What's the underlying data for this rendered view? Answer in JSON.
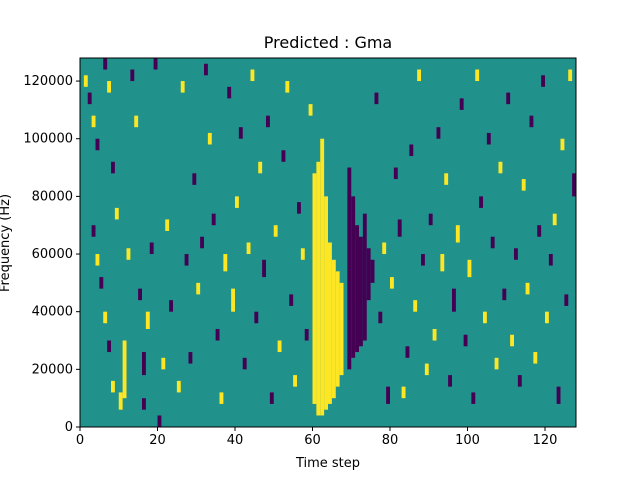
{
  "chart_data": {
    "type": "heatmap",
    "title": "Predicted : Gma",
    "xlabel": "Time step",
    "ylabel": "Frequency (Hz)",
    "xlim": [
      0,
      128
    ],
    "ylim": [
      0,
      128000
    ],
    "x_ticks": [
      0,
      20,
      40,
      60,
      80,
      100,
      120
    ],
    "y_ticks": [
      0,
      20000,
      40000,
      60000,
      80000,
      100000,
      120000
    ],
    "grid": false,
    "legend": "none",
    "colormap": "viridis (3 levels)",
    "value_colors": {
      "low": "#440154",
      "mid": "#21918c",
      "high": "#fde725"
    },
    "background_value": "mid",
    "cells": [
      {
        "x": 60,
        "y0": 8000,
        "y1": 88000,
        "v": "high"
      },
      {
        "x": 61,
        "y0": 4000,
        "y1": 92000,
        "v": "high"
      },
      {
        "x": 62,
        "y0": 4000,
        "y1": 100000,
        "v": "high"
      },
      {
        "x": 63,
        "y0": 6000,
        "y1": 80000,
        "v": "high"
      },
      {
        "x": 64,
        "y0": 8000,
        "y1": 64000,
        "v": "high"
      },
      {
        "x": 65,
        "y0": 10000,
        "y1": 58000,
        "v": "high"
      },
      {
        "x": 66,
        "y0": 14000,
        "y1": 54000,
        "v": "high"
      },
      {
        "x": 67,
        "y0": 18000,
        "y1": 50000,
        "v": "high"
      },
      {
        "x": 69,
        "y0": 20000,
        "y1": 90000,
        "v": "low"
      },
      {
        "x": 70,
        "y0": 24000,
        "y1": 80000,
        "v": "low"
      },
      {
        "x": 71,
        "y0": 26000,
        "y1": 70000,
        "v": "low"
      },
      {
        "x": 72,
        "y0": 28000,
        "y1": 66000,
        "v": "low"
      },
      {
        "x": 73,
        "y0": 30000,
        "y1": 74000,
        "v": "low"
      },
      {
        "x": 74,
        "y0": 44000,
        "y1": 62000,
        "v": "low"
      },
      {
        "x": 75,
        "y0": 50000,
        "y1": 58000,
        "v": "low"
      },
      {
        "x": 1,
        "y0": 118000,
        "y1": 122000,
        "v": "high"
      },
      {
        "x": 2,
        "y0": 112000,
        "y1": 116000,
        "v": "low"
      },
      {
        "x": 3,
        "y0": 104000,
        "y1": 108000,
        "v": "high"
      },
      {
        "x": 4,
        "y0": 96000,
        "y1": 100000,
        "v": "low"
      },
      {
        "x": 6,
        "y0": 124000,
        "y1": 128000,
        "v": "low"
      },
      {
        "x": 7,
        "y0": 116000,
        "y1": 120000,
        "v": "high"
      },
      {
        "x": 8,
        "y0": 88000,
        "y1": 92000,
        "v": "low"
      },
      {
        "x": 9,
        "y0": 72000,
        "y1": 76000,
        "v": "high"
      },
      {
        "x": 3,
        "y0": 66000,
        "y1": 70000,
        "v": "low"
      },
      {
        "x": 4,
        "y0": 56000,
        "y1": 60000,
        "v": "high"
      },
      {
        "x": 5,
        "y0": 48000,
        "y1": 52000,
        "v": "low"
      },
      {
        "x": 6,
        "y0": 36000,
        "y1": 40000,
        "v": "high"
      },
      {
        "x": 7,
        "y0": 26000,
        "y1": 30000,
        "v": "low"
      },
      {
        "x": 8,
        "y0": 12000,
        "y1": 16000,
        "v": "high"
      },
      {
        "x": 10,
        "y0": 6000,
        "y1": 12000,
        "v": "high"
      },
      {
        "x": 11,
        "y0": 10000,
        "y1": 30000,
        "v": "high"
      },
      {
        "x": 12,
        "y0": 58000,
        "y1": 62000,
        "v": "high"
      },
      {
        "x": 13,
        "y0": 120000,
        "y1": 124000,
        "v": "low"
      },
      {
        "x": 14,
        "y0": 104000,
        "y1": 108000,
        "v": "high"
      },
      {
        "x": 15,
        "y0": 44000,
        "y1": 48000,
        "v": "low"
      },
      {
        "x": 16,
        "y0": 18000,
        "y1": 26000,
        "v": "low"
      },
      {
        "x": 16,
        "y0": 6000,
        "y1": 10000,
        "v": "low"
      },
      {
        "x": 17,
        "y0": 34000,
        "y1": 40000,
        "v": "high"
      },
      {
        "x": 18,
        "y0": 60000,
        "y1": 64000,
        "v": "low"
      },
      {
        "x": 19,
        "y0": 124000,
        "y1": 128000,
        "v": "low"
      },
      {
        "x": 20,
        "y0": 0,
        "y1": 4000,
        "v": "low"
      },
      {
        "x": 21,
        "y0": 20000,
        "y1": 24000,
        "v": "high"
      },
      {
        "x": 22,
        "y0": 68000,
        "y1": 72000,
        "v": "high"
      },
      {
        "x": 23,
        "y0": 40000,
        "y1": 44000,
        "v": "low"
      },
      {
        "x": 25,
        "y0": 12000,
        "y1": 16000,
        "v": "high"
      },
      {
        "x": 26,
        "y0": 116000,
        "y1": 120000,
        "v": "high"
      },
      {
        "x": 27,
        "y0": 56000,
        "y1": 60000,
        "v": "low"
      },
      {
        "x": 28,
        "y0": 22000,
        "y1": 26000,
        "v": "low"
      },
      {
        "x": 29,
        "y0": 84000,
        "y1": 88000,
        "v": "low"
      },
      {
        "x": 30,
        "y0": 46000,
        "y1": 50000,
        "v": "high"
      },
      {
        "x": 31,
        "y0": 62000,
        "y1": 66000,
        "v": "low"
      },
      {
        "x": 32,
        "y0": 122000,
        "y1": 126000,
        "v": "low"
      },
      {
        "x": 33,
        "y0": 98000,
        "y1": 102000,
        "v": "high"
      },
      {
        "x": 34,
        "y0": 70000,
        "y1": 74000,
        "v": "low"
      },
      {
        "x": 35,
        "y0": 30000,
        "y1": 34000,
        "v": "low"
      },
      {
        "x": 36,
        "y0": 8000,
        "y1": 12000,
        "v": "high"
      },
      {
        "x": 37,
        "y0": 54000,
        "y1": 60000,
        "v": "high"
      },
      {
        "x": 38,
        "y0": 114000,
        "y1": 118000,
        "v": "low"
      },
      {
        "x": 39,
        "y0": 40000,
        "y1": 48000,
        "v": "high"
      },
      {
        "x": 40,
        "y0": 76000,
        "y1": 80000,
        "v": "high"
      },
      {
        "x": 41,
        "y0": 100000,
        "y1": 104000,
        "v": "low"
      },
      {
        "x": 42,
        "y0": 20000,
        "y1": 24000,
        "v": "low"
      },
      {
        "x": 43,
        "y0": 60000,
        "y1": 64000,
        "v": "high"
      },
      {
        "x": 44,
        "y0": 120000,
        "y1": 124000,
        "v": "high"
      },
      {
        "x": 45,
        "y0": 36000,
        "y1": 40000,
        "v": "low"
      },
      {
        "x": 46,
        "y0": 88000,
        "y1": 92000,
        "v": "high"
      },
      {
        "x": 47,
        "y0": 52000,
        "y1": 58000,
        "v": "low"
      },
      {
        "x": 48,
        "y0": 104000,
        "y1": 108000,
        "v": "low"
      },
      {
        "x": 49,
        "y0": 8000,
        "y1": 12000,
        "v": "low"
      },
      {
        "x": 50,
        "y0": 66000,
        "y1": 70000,
        "v": "high"
      },
      {
        "x": 51,
        "y0": 26000,
        "y1": 30000,
        "v": "high"
      },
      {
        "x": 52,
        "y0": 92000,
        "y1": 96000,
        "v": "low"
      },
      {
        "x": 53,
        "y0": 116000,
        "y1": 120000,
        "v": "high"
      },
      {
        "x": 54,
        "y0": 42000,
        "y1": 46000,
        "v": "low"
      },
      {
        "x": 55,
        "y0": 14000,
        "y1": 18000,
        "v": "high"
      },
      {
        "x": 56,
        "y0": 74000,
        "y1": 78000,
        "v": "low"
      },
      {
        "x": 57,
        "y0": 58000,
        "y1": 62000,
        "v": "high"
      },
      {
        "x": 58,
        "y0": 30000,
        "y1": 34000,
        "v": "low"
      },
      {
        "x": 59,
        "y0": 108000,
        "y1": 112000,
        "v": "high"
      },
      {
        "x": 76,
        "y0": 112000,
        "y1": 116000,
        "v": "low"
      },
      {
        "x": 77,
        "y0": 36000,
        "y1": 40000,
        "v": "low"
      },
      {
        "x": 78,
        "y0": 60000,
        "y1": 64000,
        "v": "high"
      },
      {
        "x": 79,
        "y0": 8000,
        "y1": 14000,
        "v": "low"
      },
      {
        "x": 80,
        "y0": 48000,
        "y1": 52000,
        "v": "high"
      },
      {
        "x": 81,
        "y0": 86000,
        "y1": 90000,
        "v": "low"
      },
      {
        "x": 82,
        "y0": 66000,
        "y1": 72000,
        "v": "low"
      },
      {
        "x": 83,
        "y0": 10000,
        "y1": 14000,
        "v": "high"
      },
      {
        "x": 84,
        "y0": 24000,
        "y1": 28000,
        "v": "low"
      },
      {
        "x": 85,
        "y0": 94000,
        "y1": 98000,
        "v": "low"
      },
      {
        "x": 86,
        "y0": 40000,
        "y1": 44000,
        "v": "high"
      },
      {
        "x": 87,
        "y0": 120000,
        "y1": 124000,
        "v": "high"
      },
      {
        "x": 88,
        "y0": 56000,
        "y1": 60000,
        "v": "low"
      },
      {
        "x": 89,
        "y0": 18000,
        "y1": 22000,
        "v": "high"
      },
      {
        "x": 90,
        "y0": 70000,
        "y1": 74000,
        "v": "low"
      },
      {
        "x": 91,
        "y0": 30000,
        "y1": 34000,
        "v": "high"
      },
      {
        "x": 92,
        "y0": 100000,
        "y1": 104000,
        "v": "low"
      },
      {
        "x": 93,
        "y0": 54000,
        "y1": 60000,
        "v": "high"
      },
      {
        "x": 94,
        "y0": 84000,
        "y1": 88000,
        "v": "high"
      },
      {
        "x": 95,
        "y0": 14000,
        "y1": 18000,
        "v": "low"
      },
      {
        "x": 96,
        "y0": 40000,
        "y1": 48000,
        "v": "low"
      },
      {
        "x": 97,
        "y0": 64000,
        "y1": 70000,
        "v": "high"
      },
      {
        "x": 98,
        "y0": 110000,
        "y1": 114000,
        "v": "low"
      },
      {
        "x": 99,
        "y0": 28000,
        "y1": 32000,
        "v": "low"
      },
      {
        "x": 100,
        "y0": 52000,
        "y1": 58000,
        "v": "high"
      },
      {
        "x": 101,
        "y0": 8000,
        "y1": 12000,
        "v": "low"
      },
      {
        "x": 102,
        "y0": 120000,
        "y1": 124000,
        "v": "high"
      },
      {
        "x": 103,
        "y0": 76000,
        "y1": 80000,
        "v": "low"
      },
      {
        "x": 104,
        "y0": 36000,
        "y1": 40000,
        "v": "high"
      },
      {
        "x": 105,
        "y0": 98000,
        "y1": 102000,
        "v": "low"
      },
      {
        "x": 106,
        "y0": 62000,
        "y1": 66000,
        "v": "low"
      },
      {
        "x": 107,
        "y0": 20000,
        "y1": 24000,
        "v": "high"
      },
      {
        "x": 108,
        "y0": 88000,
        "y1": 92000,
        "v": "high"
      },
      {
        "x": 109,
        "y0": 44000,
        "y1": 48000,
        "v": "low"
      },
      {
        "x": 110,
        "y0": 112000,
        "y1": 116000,
        "v": "low"
      },
      {
        "x": 111,
        "y0": 28000,
        "y1": 32000,
        "v": "high"
      },
      {
        "x": 112,
        "y0": 58000,
        "y1": 62000,
        "v": "low"
      },
      {
        "x": 113,
        "y0": 14000,
        "y1": 18000,
        "v": "low"
      },
      {
        "x": 114,
        "y0": 82000,
        "y1": 86000,
        "v": "high"
      },
      {
        "x": 115,
        "y0": 46000,
        "y1": 50000,
        "v": "high"
      },
      {
        "x": 116,
        "y0": 104000,
        "y1": 108000,
        "v": "low"
      },
      {
        "x": 117,
        "y0": 22000,
        "y1": 26000,
        "v": "high"
      },
      {
        "x": 118,
        "y0": 66000,
        "y1": 70000,
        "v": "low"
      },
      {
        "x": 119,
        "y0": 118000,
        "y1": 122000,
        "v": "low"
      },
      {
        "x": 120,
        "y0": 36000,
        "y1": 40000,
        "v": "high"
      },
      {
        "x": 121,
        "y0": 56000,
        "y1": 60000,
        "v": "low"
      },
      {
        "x": 122,
        "y0": 70000,
        "y1": 74000,
        "v": "high"
      },
      {
        "x": 123,
        "y0": 8000,
        "y1": 14000,
        "v": "low"
      },
      {
        "x": 124,
        "y0": 96000,
        "y1": 100000,
        "v": "high"
      },
      {
        "x": 125,
        "y0": 42000,
        "y1": 46000,
        "v": "low"
      },
      {
        "x": 126,
        "y0": 120000,
        "y1": 124000,
        "v": "high"
      },
      {
        "x": 127,
        "y0": 80000,
        "y1": 88000,
        "v": "low"
      }
    ]
  }
}
